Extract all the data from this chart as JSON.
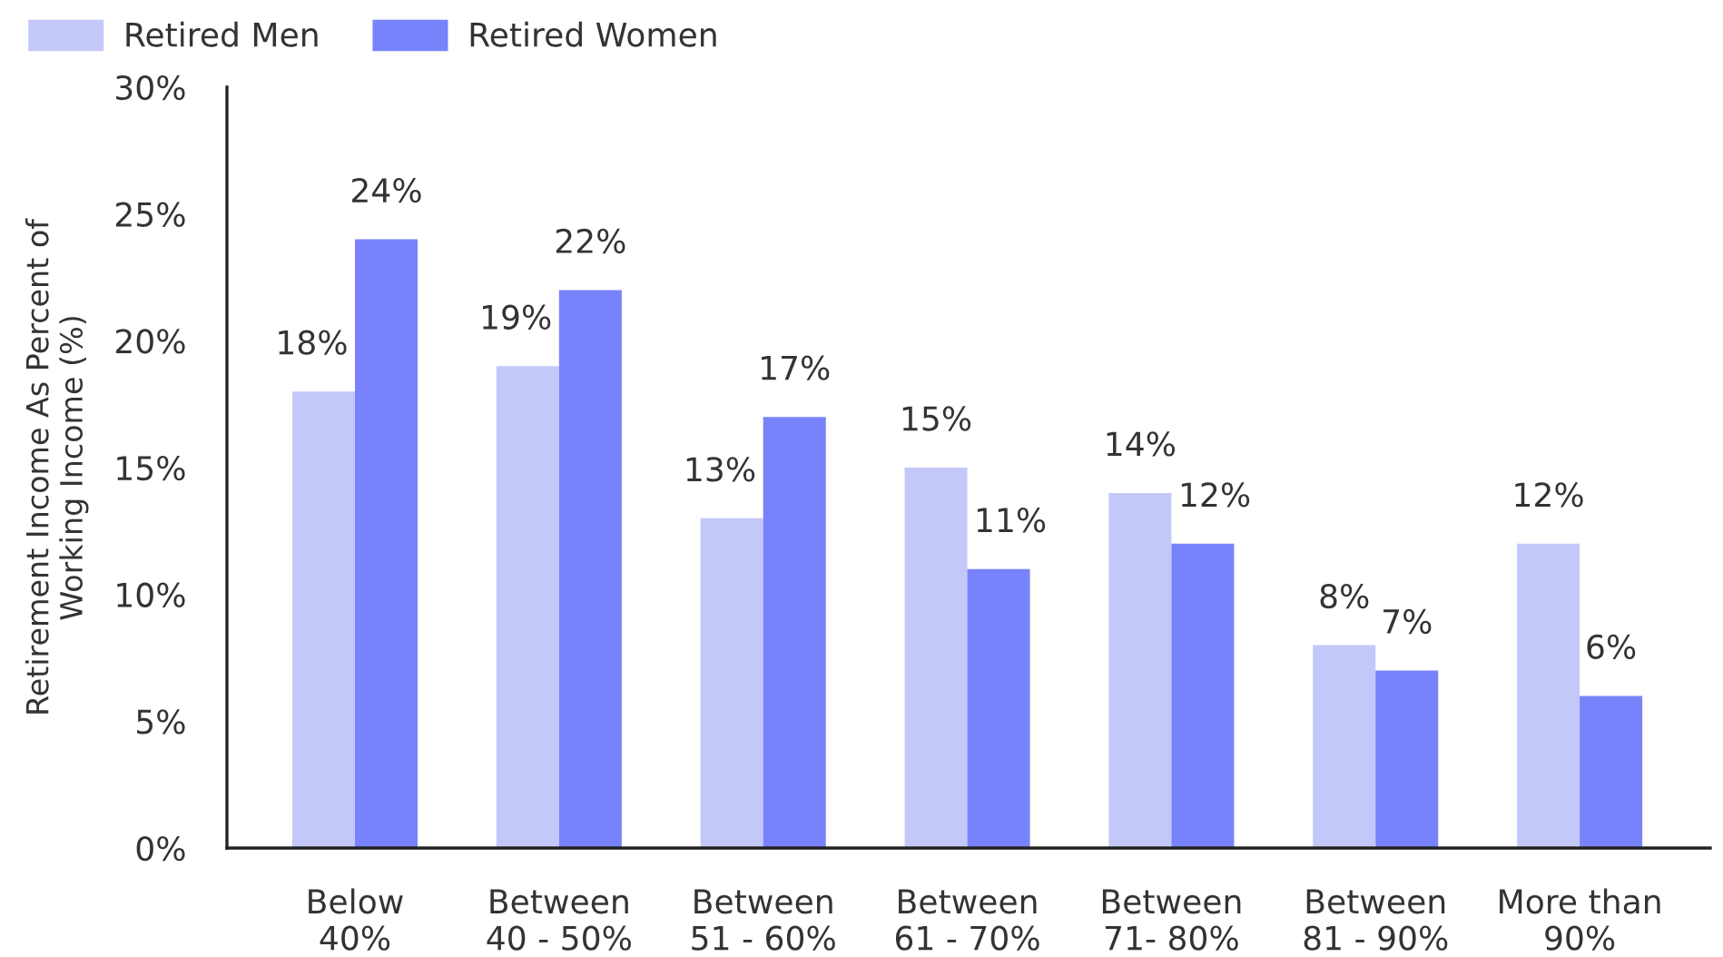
{
  "chart_data": {
    "type": "bar",
    "ylabel": "Retirement Income As Percent of\nWorking Income (%)",
    "categories": [
      "Below\n40%",
      "Between\n40 - 50%",
      "Between\n51 - 60%",
      "Between\n61 - 70%",
      "Between\n71- 80%",
      "Between\n81 - 90%",
      "More than\n90%"
    ],
    "series": [
      {
        "name": "Retired Men",
        "color": "#c4c8f9",
        "values": [
          18,
          19,
          13,
          15,
          14,
          8,
          12
        ],
        "value_labels": [
          "18%",
          "19%",
          "13%",
          "15%",
          "14%",
          "8%",
          "12%"
        ]
      },
      {
        "name": "Retired Women",
        "color": "#7883fb",
        "values": [
          24,
          22,
          17,
          11,
          12,
          7,
          6
        ],
        "value_labels": [
          "24%",
          "22%",
          "17%",
          "11%",
          "12%",
          "7%",
          "6%"
        ]
      }
    ],
    "ylim": [
      0,
      30
    ],
    "yticks": [
      {
        "value": 0,
        "label": "0%"
      },
      {
        "value": 5,
        "label": "5%"
      },
      {
        "value": 10,
        "label": "10%"
      },
      {
        "value": 15,
        "label": "15%"
      },
      {
        "value": 20,
        "label": "20%"
      },
      {
        "value": 25,
        "label": "25%"
      },
      {
        "value": 30,
        "label": "30%"
      }
    ],
    "legend": "top left"
  }
}
